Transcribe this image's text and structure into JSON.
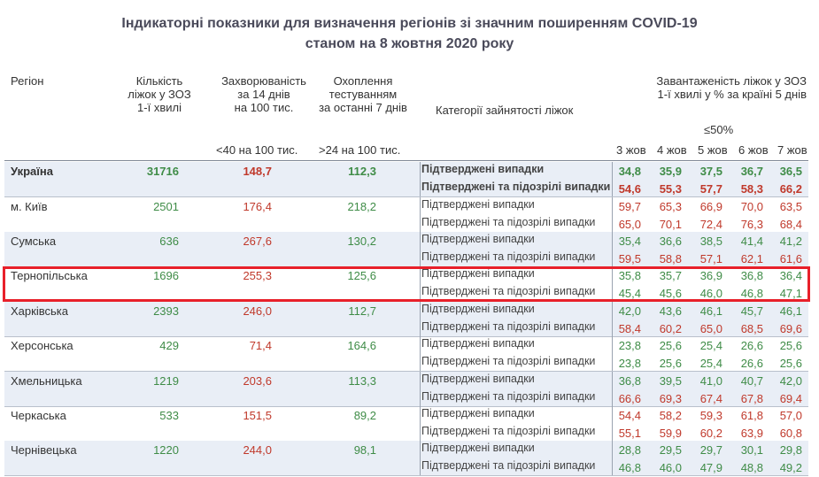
{
  "title": {
    "line1": "Індикаторні показники для визначення регіонів зі значним поширенням COVID-19",
    "line2": "станом на 8 жовтня 2020 року"
  },
  "headers": {
    "region": "Регіон",
    "beds": [
      "Кількість",
      "ліжок у ЗОЗ",
      "1-ї хвилі"
    ],
    "incidence": [
      "Захворюваність",
      "за 14 днів",
      "на 100 тис."
    ],
    "testing": [
      "Охоплення",
      "тестуванням",
      "за останні 7 днів"
    ],
    "category": "Категорії зайнятості ліжок",
    "occupancy": [
      "Завантаженість ліжок у ЗОЗ",
      "1-ї хвилі у % за країні 5 днів"
    ],
    "incidence_threshold": "<40 на 100 тис.",
    "testing_threshold": ">24 на 100 тис.",
    "occupancy_threshold": "≤50%",
    "days": [
      "3 жов",
      "4 жов",
      "5 жов",
      "6 жов",
      "7 жов"
    ]
  },
  "categories": {
    "confirmed": "Підтверджені випадки",
    "confirmed_suspected": "Підтверджені та підозрілі випадки"
  },
  "colors": {
    "green": "#3f8c47",
    "red": "#c0392b",
    "highlight": "#e8202a",
    "row_shading": "#e9eef6"
  },
  "rows": [
    {
      "region": "Україна",
      "beds": "31716",
      "incidence": "148,7",
      "testing": "112,3",
      "confirmed": [
        "34,8",
        "35,9",
        "37,5",
        "36,7",
        "36,5"
      ],
      "confirmed_suspected": [
        "54,6",
        "55,3",
        "57,7",
        "58,3",
        "66,2"
      ]
    },
    {
      "region": "м. Київ",
      "beds": "2501",
      "incidence": "176,4",
      "testing": "218,2",
      "confirmed": [
        "59,7",
        "65,3",
        "66,9",
        "70,0",
        "63,5"
      ],
      "confirmed_suspected": [
        "65,0",
        "70,1",
        "72,4",
        "76,3",
        "68,4"
      ]
    },
    {
      "region": "Сумська",
      "beds": "636",
      "incidence": "267,6",
      "testing": "130,2",
      "confirmed": [
        "35,4",
        "36,6",
        "38,5",
        "41,4",
        "41,2"
      ],
      "confirmed_suspected": [
        "59,5",
        "58,8",
        "57,1",
        "62,1",
        "61,6"
      ]
    },
    {
      "region": "Тернопільська",
      "beds": "1696",
      "incidence": "255,3",
      "testing": "125,6",
      "confirmed": [
        "35,8",
        "35,7",
        "36,9",
        "36,8",
        "36,4"
      ],
      "confirmed_suspected": [
        "45,4",
        "45,6",
        "46,0",
        "46,8",
        "47,1"
      ]
    },
    {
      "region": "Харківська",
      "beds": "2393",
      "incidence": "246,0",
      "testing": "112,7",
      "confirmed": [
        "42,0",
        "43,6",
        "46,1",
        "45,7",
        "46,1"
      ],
      "confirmed_suspected": [
        "58,4",
        "60,2",
        "65,0",
        "68,5",
        "69,6"
      ]
    },
    {
      "region": "Херсонська",
      "beds": "429",
      "incidence": "71,4",
      "testing": "164,6",
      "confirmed": [
        "23,8",
        "25,6",
        "25,4",
        "26,6",
        "25,6"
      ],
      "confirmed_suspected": [
        "23,8",
        "25,6",
        "25,4",
        "26,6",
        "25,6"
      ]
    },
    {
      "region": "Хмельницька",
      "beds": "1219",
      "incidence": "203,6",
      "testing": "113,3",
      "confirmed": [
        "36,8",
        "39,5",
        "41,0",
        "40,7",
        "42,0"
      ],
      "confirmed_suspected": [
        "66,6",
        "69,3",
        "67,4",
        "67,8",
        "69,4"
      ]
    },
    {
      "region": "Черкаська",
      "beds": "533",
      "incidence": "151,5",
      "testing": "89,2",
      "confirmed": [
        "54,4",
        "58,2",
        "59,3",
        "61,8",
        "57,0"
      ],
      "confirmed_suspected": [
        "55,1",
        "59,9",
        "60,2",
        "63,9",
        "60,8"
      ]
    },
    {
      "region": "Чернівецька",
      "beds": "1220",
      "incidence": "244,0",
      "testing": "98,1",
      "confirmed": [
        "28,8",
        "29,5",
        "29,7",
        "30,1",
        "29,8"
      ],
      "confirmed_suspected": [
        "46,8",
        "46,0",
        "47,9",
        "48,8",
        "49,2"
      ]
    }
  ]
}
